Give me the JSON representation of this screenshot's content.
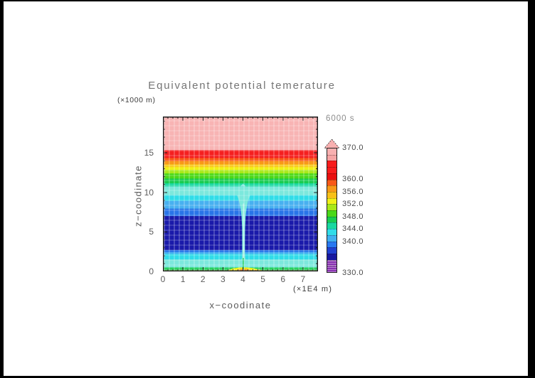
{
  "title": "Equivalent potential temerature",
  "time_label": "6000 s",
  "axes": {
    "x": {
      "label": "x−coodinate",
      "unit": "(×1E4 m)",
      "range": [
        0,
        7.75
      ],
      "major_ticks": [
        "0",
        "1",
        "2",
        "3",
        "4",
        "5",
        "6",
        "7"
      ],
      "minor_step": 0.25
    },
    "y": {
      "label": "z−coodinate",
      "unit": "(×1000 m)",
      "range": [
        0,
        19.6
      ],
      "major_ticks": [
        "0",
        "5",
        "10",
        "15"
      ],
      "minor_step": 1
    }
  },
  "colorbar": {
    "range": [
      330,
      370
    ],
    "tick_labels": [
      "370.0",
      "360.0",
      "356.0",
      "352.0",
      "348.0",
      "344.0",
      "340.0",
      "330.0"
    ],
    "tick_values": [
      370,
      360,
      356,
      352,
      348,
      344,
      340,
      330
    ],
    "arrow_color": "#f8b0b0",
    "segments": [
      {
        "from": 368,
        "to": 370,
        "color": "#f8b0b0"
      },
      {
        "from": 366,
        "to": 368,
        "color": "#f6a4a4"
      },
      {
        "from": 364,
        "to": 366,
        "color": "#f81c1c"
      },
      {
        "from": 362,
        "to": 364,
        "color": "#f81c1c"
      },
      {
        "from": 360,
        "to": 362,
        "color": "#ea1010"
      },
      {
        "from": 358,
        "to": 360,
        "color": "#f85818"
      },
      {
        "from": 356,
        "to": 358,
        "color": "#f89818"
      },
      {
        "from": 354,
        "to": 356,
        "color": "#f8c018"
      },
      {
        "from": 352,
        "to": 354,
        "color": "#f0f018"
      },
      {
        "from": 350,
        "to": 352,
        "color": "#a8e818"
      },
      {
        "from": 348,
        "to": 350,
        "color": "#4ad818"
      },
      {
        "from": 346,
        "to": 348,
        "color": "#18cc50"
      },
      {
        "from": 344,
        "to": 346,
        "color": "#18d8a0"
      },
      {
        "from": 342,
        "to": 344,
        "color": "#30dce8"
      },
      {
        "from": 340,
        "to": 342,
        "color": "#40b0f0"
      },
      {
        "from": 338,
        "to": 340,
        "color": "#2878f0"
      },
      {
        "from": 336,
        "to": 338,
        "color": "#2040d0"
      },
      {
        "from": 334,
        "to": 336,
        "color": "#1818a0"
      },
      {
        "from": 332,
        "to": 334,
        "color": "#8830b0",
        "hatch": true
      },
      {
        "from": 330,
        "to": 332,
        "color": "#8830b0",
        "hatch": true
      }
    ]
  },
  "chart_data": {
    "type": "heatmap",
    "title": "Equivalent potential temerature",
    "xlabel": "x−coodinate (×1E4 m)",
    "ylabel": "z−coodinate (×1000 m)",
    "time": "6000 s",
    "x_range": [
      0,
      7.75
    ],
    "z_range": [
      0,
      19.6
    ],
    "value_range": [
      330,
      370
    ],
    "bands": [
      {
        "z_from": 15.35,
        "z_to": 19.6,
        "value_from": 366,
        "value_to": 370,
        "color": "#f8b4b4"
      },
      {
        "z_from": 14.35,
        "z_to": 15.35,
        "value_from": 360,
        "value_to": 366,
        "color": "#f52020"
      },
      {
        "z_from": 13.95,
        "z_to": 14.35,
        "value_from": 358,
        "value_to": 360,
        "color": "#f85818"
      },
      {
        "z_from": 13.55,
        "z_to": 13.95,
        "value_from": 356,
        "value_to": 358,
        "color": "#f89818"
      },
      {
        "z_from": 13.2,
        "z_to": 13.55,
        "value_from": 354,
        "value_to": 356,
        "color": "#f8c818"
      },
      {
        "z_from": 12.85,
        "z_to": 13.2,
        "value_from": 352,
        "value_to": 354,
        "color": "#f0f018"
      },
      {
        "z_from": 12.4,
        "z_to": 12.85,
        "value_from": 350,
        "value_to": 352,
        "color": "#a8e818"
      },
      {
        "z_from": 11.75,
        "z_to": 12.4,
        "value_from": 348,
        "value_to": 350,
        "color": "#4ad818"
      },
      {
        "z_from": 11.15,
        "z_to": 11.75,
        "value_from": 346,
        "value_to": 348,
        "color": "#18cc50"
      },
      {
        "z_from": 10.75,
        "z_to": 11.15,
        "value_from": 344,
        "value_to": 346,
        "color": "#18d8a0"
      },
      {
        "z_from": 9.65,
        "z_to": 10.75,
        "value_from": 342,
        "value_to": 344,
        "color": "#7ce8dc"
      },
      {
        "z_from": 8.95,
        "z_to": 9.65,
        "value_from": 340,
        "value_to": 342,
        "color": "#30dce8"
      },
      {
        "z_from": 7.95,
        "z_to": 8.95,
        "value_from": 338,
        "value_to": 340,
        "color": "#48b0f0"
      },
      {
        "z_from": 7.0,
        "z_to": 7.95,
        "value_from": 336,
        "value_to": 338,
        "color": "#2874e8"
      },
      {
        "z_from": 2.7,
        "z_to": 7.0,
        "value_from": 334,
        "value_to": 336,
        "color": "#1a1aaa"
      },
      {
        "z_from": 2.45,
        "z_to": 2.7,
        "value_from": 336,
        "value_to": 338,
        "color": "#2874e8"
      },
      {
        "z_from": 2.2,
        "z_to": 2.45,
        "value_from": 338,
        "value_to": 340,
        "color": "#48b0f0"
      },
      {
        "z_from": 1.5,
        "z_to": 2.2,
        "value_from": 340,
        "value_to": 342,
        "color": "#30dce8"
      },
      {
        "z_from": 0.5,
        "z_to": 1.5,
        "value_from": 342,
        "value_to": 344,
        "color": "#7ce8dc"
      },
      {
        "z_from": 0.15,
        "z_to": 0.5,
        "value_from": 346,
        "value_to": 348,
        "color": "#2ad060"
      },
      {
        "z_from": 0.0,
        "z_to": 0.15,
        "value_from": 350,
        "value_to": 352,
        "color": "#a8e818"
      }
    ],
    "features": {
      "downdraft": {
        "description": "narrow cool column at x≈4 from z≈11 to surface",
        "color": "#7ce8dc",
        "polygon": [
          [
            3.7,
            9.65
          ],
          [
            3.8,
            9.0
          ],
          [
            3.88,
            8.0
          ],
          [
            3.93,
            7.0
          ],
          [
            3.955,
            5.5
          ],
          [
            3.96,
            4.0
          ],
          [
            3.96,
            2.5
          ],
          [
            3.945,
            1.6
          ],
          [
            3.86,
            1.45
          ],
          [
            4.2,
            1.45
          ],
          [
            4.115,
            1.6
          ],
          [
            4.1,
            2.5
          ],
          [
            4.1,
            4.0
          ],
          [
            4.105,
            5.5
          ],
          [
            4.13,
            7.0
          ],
          [
            4.18,
            8.0
          ],
          [
            4.26,
            9.0
          ],
          [
            4.36,
            9.65
          ]
        ],
        "top_bump": [
          [
            3.86,
            10.75
          ],
          [
            4.0,
            11.1
          ],
          [
            4.14,
            10.75
          ]
        ],
        "inner_line": {
          "x": [
            4.0,
            4.06
          ],
          "z": [
            1.5,
            8.6
          ],
          "color": "#b2f2ea"
        }
      },
      "surface_plume": {
        "description": "warm anomaly at surface near x≈4",
        "layers": [
          {
            "color": "#f0f018",
            "points": [
              [
                3.1,
                0
              ],
              [
                3.5,
                0.38
              ],
              [
                3.85,
                0.5
              ],
              [
                4.2,
                0.5
              ],
              [
                4.45,
                0.42
              ],
              [
                4.6,
                0.35
              ],
              [
                4.8,
                0.25
              ],
              [
                5.15,
                0
              ]
            ]
          },
          {
            "color": "#f89818",
            "points": [
              [
                3.55,
                0
              ],
              [
                3.8,
                0.25
              ],
              [
                3.95,
                0.32
              ],
              [
                4.15,
                0.32
              ],
              [
                4.35,
                0.2
              ],
              [
                4.5,
                0.1
              ],
              [
                4.55,
                0.16
              ],
              [
                4.65,
                0.18
              ],
              [
                4.8,
                0
              ]
            ]
          },
          {
            "color": "#f85818",
            "points": [
              [
                3.8,
                0
              ],
              [
                3.95,
                0.2
              ],
              [
                4.1,
                0.2
              ],
              [
                4.22,
                0
              ]
            ]
          },
          {
            "color": "#ea1010",
            "points": [
              [
                3.9,
                0
              ],
              [
                4.0,
                0.12
              ],
              [
                4.1,
                0
              ]
            ]
          }
        ],
        "center_line": {
          "x": [
            3.99,
            4.05
          ],
          "z": [
            0.15,
            1.7
          ],
          "color": "#2ad060"
        }
      }
    }
  }
}
